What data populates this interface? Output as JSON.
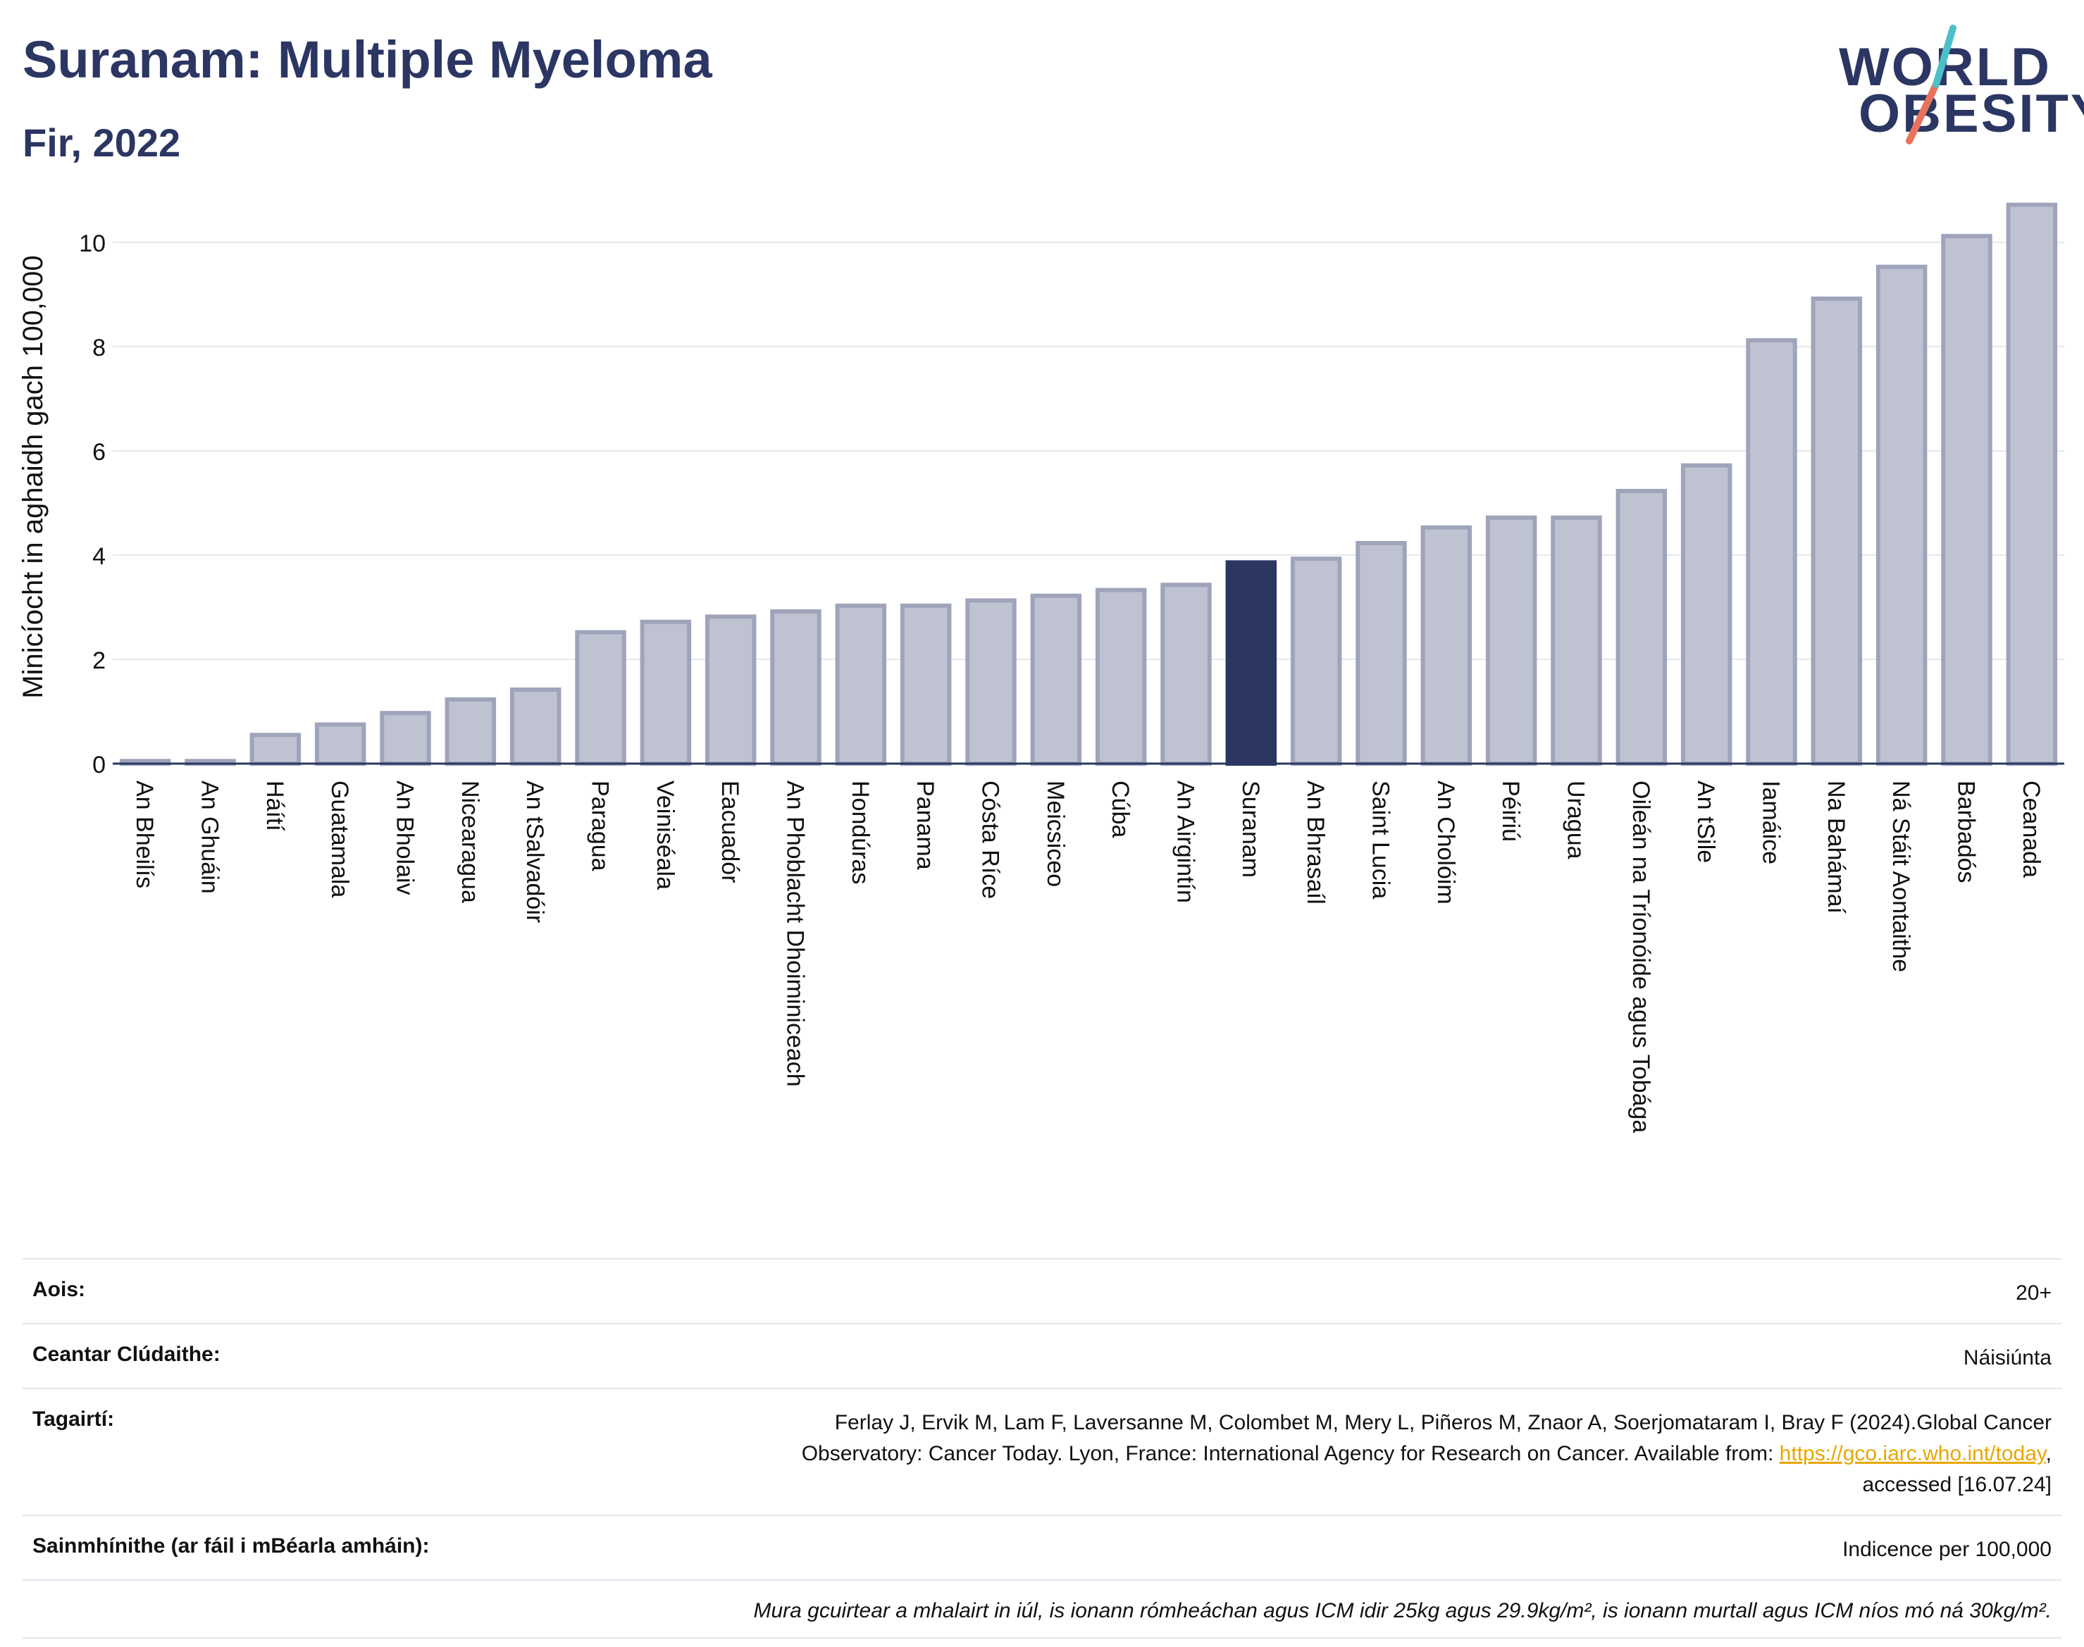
{
  "header": {
    "title": "Suranam: Multiple Myeloma",
    "subtitle": "Fir, 2022"
  },
  "logo": {
    "line1": "WORLD",
    "line2": "OBESITY",
    "slash_colors": [
      "#4bc0c8",
      "#e8735c"
    ]
  },
  "colors": {
    "highlight": "#2b3663",
    "bar": "#bfc3d1",
    "bar_border": "#9fa4bb",
    "text": "#2b3663",
    "link": "#e6a700"
  },
  "chart_data": {
    "type": "bar",
    "ylabel": "Minicíocht in aghaidh gach 100,000",
    "ylim": [
      0,
      11
    ],
    "yticks": [
      0,
      2,
      4,
      6,
      8,
      10
    ],
    "grid": true,
    "highlight": "Suranam",
    "categories": [
      "An Bheilís",
      "An Ghuáin",
      "Háítí",
      "Guatamala",
      "An Bholaiv",
      "Nicearagua",
      "An tSalvadóir",
      "Paragua",
      "Veiniséala",
      "Eacuadór",
      "An Phoblacht Dhoiminiceach",
      "Hondúras",
      "Panama",
      "Cósta Ríce",
      "Meicsiceo",
      "Cúba",
      "An Airgintín",
      "Suranam",
      "An Bhrasaíl",
      "Saint Lucia",
      "An Cholóim",
      "Péiriú",
      "Uragua",
      "Oileán na Tríonóide agus Tobága",
      "An tSile",
      "Iamáice",
      "Na Bahámaí",
      "Ná Stáit Aontaithe",
      "Barbadós",
      "Ceanada"
    ],
    "values": [
      0.05,
      0.05,
      0.55,
      0.75,
      0.97,
      1.23,
      1.42,
      2.52,
      2.72,
      2.82,
      2.92,
      3.03,
      3.03,
      3.13,
      3.22,
      3.33,
      3.43,
      3.86,
      3.93,
      4.23,
      4.53,
      4.72,
      4.72,
      5.23,
      5.72,
      8.12,
      8.92,
      9.53,
      10.12,
      10.72
    ]
  },
  "info": {
    "age_label": "Aois:",
    "age_value": "20+",
    "coverage_label": "Ceantar Clúdaithe:",
    "coverage_value": "Náisiúnta",
    "refs_label": "Tagairtí:",
    "refs_line1": "Ferlay J, Ervik M, Lam F, Laversanne M, Colombet M, Mery L, Piñeros M, Znaor A, Soerjomataram I, Bray F (2024).Global Cancer",
    "refs_line2_pre": "Observatory: Cancer Today. Lyon, France: International Agency for Research on Cancer. Available from: ",
    "refs_link": "https://gco.iarc.who.int/today",
    "refs_line2_post": ",",
    "refs_line3": "accessed [16.07.24]",
    "defs_label": "Sainmhínithe (ar fáil i mBéarla amháin):",
    "defs_value": "Indicence per 100,000",
    "note": "Mura gcuirtear a mhalairt in iúl, is ionann rómheáchan agus ICM idir 25kg agus 29.9kg/m², is ionann murtall agus ICM níos mó ná 30kg/m²."
  }
}
